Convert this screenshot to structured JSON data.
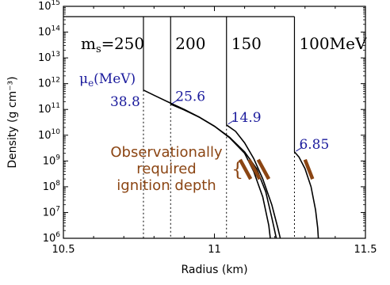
{
  "colors": {
    "curve": "#000000",
    "mu": "#1a1a9c",
    "obs": "#8b4513"
  },
  "chart_data": {
    "type": "line",
    "title": "",
    "xlabel": "Radius (km)",
    "ylabel": "Density (g cm⁻³)",
    "xlim": [
      10.5,
      11.5
    ],
    "ylim_log10": [
      6,
      15
    ],
    "yscale": "log",
    "x_ticks": [
      {
        "value": 10.5,
        "label": "10.5"
      },
      {
        "value": 11.0,
        "label": "11"
      },
      {
        "value": 11.5,
        "label": "11.5"
      }
    ],
    "y_ticks": [
      {
        "exp": 6,
        "base": "10",
        "sup": "6"
      },
      {
        "exp": 7,
        "base": "10",
        "sup": "7"
      },
      {
        "exp": 8,
        "base": "10",
        "sup": "8"
      },
      {
        "exp": 9,
        "base": "10",
        "sup": "9"
      },
      {
        "exp": 10,
        "base": "10",
        "sup": "10"
      },
      {
        "exp": 11,
        "base": "10",
        "sup": "11"
      },
      {
        "exp": 12,
        "base": "10",
        "sup": "12"
      },
      {
        "exp": 13,
        "base": "10",
        "sup": "13"
      },
      {
        "exp": 14,
        "base": "10",
        "sup": "14"
      },
      {
        "exp": 15,
        "base": "10",
        "sup": "15"
      }
    ],
    "ms_prefix": "m",
    "ms_sub": "s",
    "ms_eq": "=",
    "mu_header": "μe(MeV)",
    "mu_base": "μ",
    "mu_sub": "e",
    "mu_unit": "(MeV)",
    "quark_top_log_density": 14.6,
    "series": [
      {
        "ms_label": "250",
        "mu_e": "38.8",
        "quark_left_radius": 10.85,
        "surface_radius": 10.765,
        "points": [
          [
            10.765,
            11.75
          ],
          [
            10.8,
            11.55
          ],
          [
            10.85,
            11.27
          ],
          [
            10.9,
            11.0
          ],
          [
            10.95,
            10.7
          ],
          [
            11.0,
            10.35
          ],
          [
            11.05,
            9.9
          ],
          [
            11.1,
            9.3
          ],
          [
            11.13,
            8.6
          ],
          [
            11.16,
            7.6
          ],
          [
            11.18,
            6.5
          ],
          [
            11.185,
            6.0
          ]
        ]
      },
      {
        "ms_label": "200",
        "mu_e": "25.6",
        "quark_left_radius": 10.85,
        "surface_radius": 10.855,
        "points": [
          [
            10.855,
            11.2
          ],
          [
            10.9,
            10.98
          ],
          [
            10.95,
            10.7
          ],
          [
            11.0,
            10.35
          ],
          [
            11.05,
            9.92
          ],
          [
            11.1,
            9.35
          ],
          [
            11.14,
            8.7
          ],
          [
            11.17,
            7.8
          ],
          [
            11.19,
            6.8
          ],
          [
            11.205,
            6.0
          ]
        ]
      },
      {
        "ms_label": "150",
        "mu_e": "14.9",
        "quark_left_radius": 11.04,
        "surface_radius": 11.04,
        "points": [
          [
            11.04,
            10.4
          ],
          [
            11.07,
            10.15
          ],
          [
            11.1,
            9.7
          ],
          [
            11.13,
            9.1
          ],
          [
            11.16,
            8.3
          ],
          [
            11.19,
            7.3
          ],
          [
            11.21,
            6.4
          ],
          [
            11.218,
            6.0
          ]
        ]
      },
      {
        "ms_label": "100MeV",
        "mu_e": "6.85",
        "quark_left_radius": 11.265,
        "surface_radius": 11.265,
        "points": [
          [
            11.265,
            9.35
          ],
          [
            11.28,
            9.15
          ],
          [
            11.3,
            8.7
          ],
          [
            11.32,
            8.0
          ],
          [
            11.335,
            7.1
          ],
          [
            11.342,
            6.4
          ],
          [
            11.344,
            6.0
          ]
        ]
      }
    ],
    "ignition_segments": [
      [
        [
          11.085,
          9.05
        ],
        [
          11.12,
          8.3
        ]
      ],
      [
        [
          11.115,
          9.05
        ],
        [
          11.15,
          8.3
        ]
      ],
      [
        [
          11.145,
          9.05
        ],
        [
          11.18,
          8.3
        ]
      ],
      [
        [
          11.3,
          9.05
        ],
        [
          11.325,
          8.3
        ]
      ]
    ],
    "annotation": {
      "brace": "{",
      "lines": [
        "Observationally",
        "required",
        "ignition depth"
      ]
    }
  }
}
